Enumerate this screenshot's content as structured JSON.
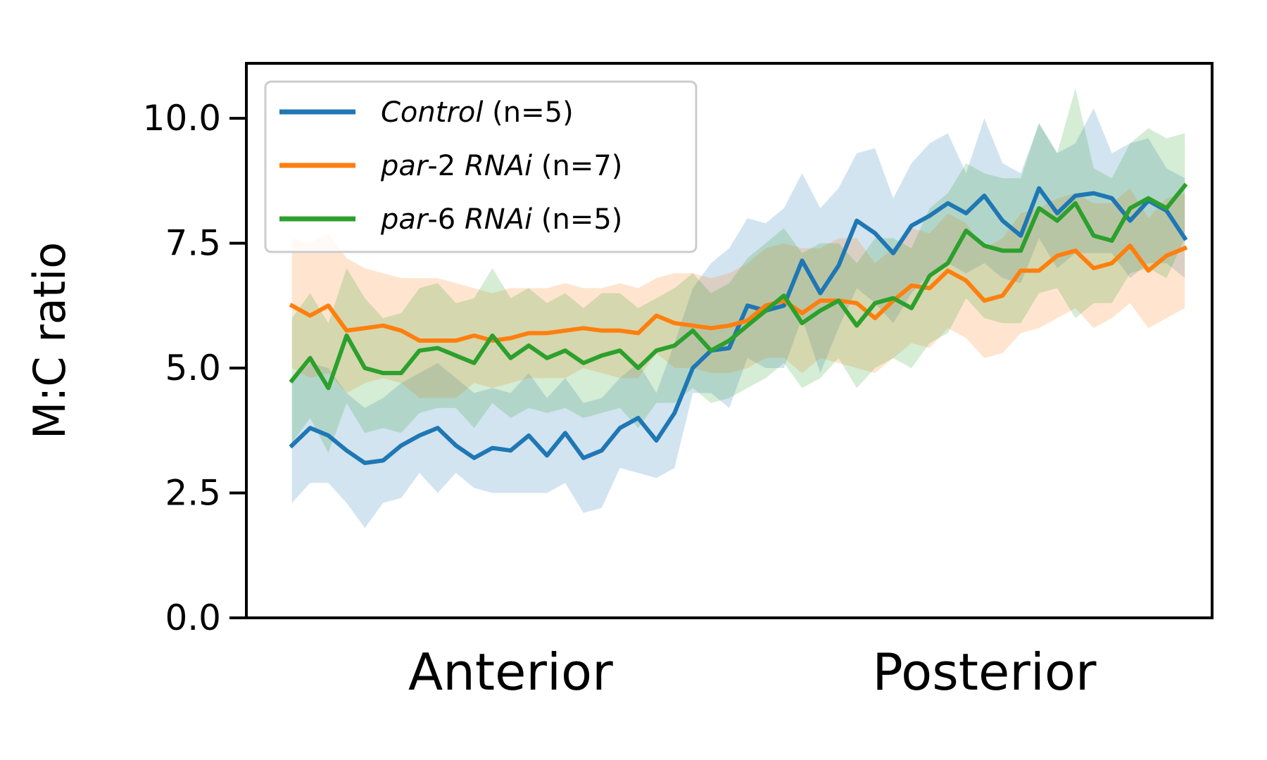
{
  "chart_data": {
    "type": "line",
    "ylabel": "M:C ratio",
    "xlabel": "",
    "ylim": [
      0,
      11.1
    ],
    "yticks": [
      "0.0",
      "2.5",
      "5.0",
      "7.5",
      "10.0"
    ],
    "ytick_values": [
      0,
      2.5,
      5.0,
      7.5,
      10.0
    ],
    "x_category_labels": [
      {
        "label": "Anterior",
        "position": 12
      },
      {
        "label": "Posterior",
        "position": 38
      }
    ],
    "x_range": [
      -2.5,
      50.5
    ],
    "grid": false,
    "legend": "top-left",
    "series": [
      {
        "name": "Control",
        "name_italic": "Control",
        "name_rest": " (n=5)",
        "color": "#1f77b4",
        "values": [
          3.45,
          3.8,
          3.65,
          3.35,
          3.1,
          3.15,
          3.45,
          3.65,
          3.8,
          3.45,
          3.2,
          3.4,
          3.35,
          3.65,
          3.25,
          3.7,
          3.2,
          3.35,
          3.8,
          4.0,
          3.55,
          4.1,
          5.0,
          5.35,
          5.4,
          6.25,
          6.15,
          6.25,
          7.15,
          6.5,
          7.05,
          7.95,
          7.7,
          7.3,
          7.85,
          8.05,
          8.3,
          8.1,
          8.45,
          7.95,
          7.65,
          8.6,
          8.1,
          8.45,
          8.5,
          8.4,
          7.95,
          8.35,
          8.15,
          7.6
        ],
        "upper": [
          4.7,
          5.1,
          5.0,
          4.5,
          4.2,
          4.4,
          4.7,
          4.9,
          5.1,
          4.8,
          4.5,
          4.6,
          4.5,
          4.9,
          4.4,
          4.8,
          4.3,
          4.4,
          4.8,
          5.1,
          4.5,
          5.5,
          6.6,
          7.1,
          7.4,
          8.0,
          7.9,
          8.2,
          8.9,
          8.2,
          8.6,
          9.3,
          9.4,
          8.4,
          9.1,
          9.5,
          9.7,
          8.9,
          10.0,
          9.1,
          8.9,
          9.9,
          9.3,
          9.5,
          10.2,
          9.3,
          9.5,
          9.6,
          9.0,
          8.8
        ],
        "lower": [
          2.3,
          2.7,
          2.7,
          2.3,
          1.8,
          2.3,
          2.4,
          2.9,
          2.5,
          2.9,
          2.6,
          2.5,
          2.5,
          2.5,
          2.5,
          2.7,
          2.1,
          2.2,
          3.0,
          2.9,
          2.8,
          3.0,
          4.5,
          4.5,
          4.2,
          5.2,
          5.0,
          5.0,
          6.0,
          4.9,
          5.8,
          6.6,
          6.3,
          5.9,
          6.5,
          6.9,
          7.1,
          6.9,
          7.1,
          6.8,
          6.7,
          7.6,
          7.0,
          7.3,
          7.3,
          7.3,
          6.8,
          7.1,
          7.1,
          6.8
        ]
      },
      {
        "name": "par-2 RNAi",
        "name_italic_1": "par",
        "name_plain": "-2 ",
        "name_italic_2": "RNAi",
        "name_rest": " (n=7)",
        "color": "#ff7f0e",
        "values": [
          6.25,
          6.05,
          6.25,
          5.75,
          5.8,
          5.85,
          5.75,
          5.55,
          5.55,
          5.55,
          5.65,
          5.55,
          5.6,
          5.7,
          5.7,
          5.75,
          5.8,
          5.75,
          5.75,
          5.7,
          6.05,
          5.9,
          5.85,
          5.8,
          5.85,
          5.95,
          6.25,
          6.35,
          6.1,
          6.35,
          6.35,
          6.3,
          6.0,
          6.35,
          6.65,
          6.6,
          6.95,
          6.75,
          6.35,
          6.45,
          6.95,
          6.95,
          7.25,
          7.35,
          7.0,
          7.1,
          7.45,
          6.95,
          7.25,
          7.4
        ],
        "upper": [
          7.6,
          7.5,
          7.7,
          7.2,
          7.0,
          6.9,
          6.8,
          6.8,
          6.8,
          6.7,
          6.6,
          6.5,
          6.6,
          6.6,
          6.6,
          6.7,
          6.6,
          6.6,
          6.7,
          6.6,
          6.8,
          6.9,
          6.9,
          6.8,
          6.9,
          7.1,
          7.4,
          7.5,
          7.4,
          7.4,
          7.6,
          7.6,
          7.1,
          7.4,
          7.8,
          7.7,
          8.1,
          7.9,
          7.4,
          7.6,
          8.1,
          8.2,
          8.4,
          8.5,
          8.3,
          8.3,
          8.6,
          8.0,
          8.4,
          8.5
        ],
        "lower": [
          5.0,
          4.8,
          4.9,
          4.5,
          4.7,
          4.8,
          4.7,
          4.4,
          4.4,
          4.4,
          4.7,
          4.6,
          4.7,
          4.8,
          4.8,
          4.8,
          5.0,
          4.9,
          4.8,
          4.8,
          5.3,
          5.0,
          5.0,
          4.9,
          4.9,
          5.0,
          5.2,
          5.2,
          4.9,
          5.2,
          5.1,
          5.0,
          4.9,
          5.2,
          5.5,
          5.4,
          5.8,
          5.6,
          5.2,
          5.3,
          5.7,
          5.8,
          6.0,
          6.2,
          5.8,
          6.0,
          6.3,
          5.8,
          6.0,
          6.2
        ]
      },
      {
        "name": "par-6 RNAi",
        "name_italic_1": "par",
        "name_plain": "-6 ",
        "name_italic_2": "RNAi",
        "name_rest": " (n=5)",
        "color": "#2ca02c",
        "values": [
          4.75,
          5.2,
          4.6,
          5.65,
          5.0,
          4.9,
          4.9,
          5.35,
          5.4,
          5.25,
          5.1,
          5.65,
          5.2,
          5.45,
          5.2,
          5.35,
          5.1,
          5.25,
          5.35,
          5.0,
          5.35,
          5.45,
          5.75,
          5.35,
          5.55,
          5.85,
          6.15,
          6.45,
          5.9,
          6.15,
          6.35,
          5.85,
          6.3,
          6.4,
          6.2,
          6.85,
          7.1,
          7.75,
          7.45,
          7.35,
          7.35,
          8.2,
          7.95,
          8.3,
          7.65,
          7.55,
          8.2,
          8.4,
          8.2,
          8.65
        ],
        "upper": [
          6.0,
          6.5,
          5.9,
          7.0,
          6.4,
          6.0,
          6.1,
          6.6,
          6.7,
          6.3,
          6.4,
          7.0,
          6.4,
          6.6,
          6.3,
          6.5,
          6.2,
          6.5,
          6.5,
          6.2,
          6.4,
          6.6,
          6.9,
          6.5,
          6.7,
          7.2,
          7.5,
          7.8,
          7.3,
          7.5,
          7.5,
          7.1,
          7.6,
          7.6,
          7.4,
          8.2,
          8.5,
          9.1,
          8.9,
          8.8,
          8.8,
          9.9,
          9.3,
          10.6,
          9.0,
          8.8,
          9.5,
          9.8,
          9.6,
          9.7
        ],
        "lower": [
          3.5,
          4.0,
          3.3,
          4.3,
          3.7,
          3.8,
          3.7,
          4.1,
          4.2,
          4.2,
          3.8,
          4.3,
          4.0,
          4.2,
          4.1,
          4.2,
          4.0,
          4.1,
          4.2,
          3.8,
          4.3,
          4.3,
          4.6,
          4.3,
          4.4,
          4.6,
          4.8,
          5.1,
          4.6,
          4.8,
          5.2,
          4.6,
          5.0,
          5.2,
          5.0,
          5.5,
          5.7,
          6.4,
          6.0,
          5.9,
          5.9,
          6.5,
          6.6,
          6.0,
          6.3,
          6.3,
          6.9,
          7.0,
          6.8,
          7.6
        ]
      }
    ]
  }
}
